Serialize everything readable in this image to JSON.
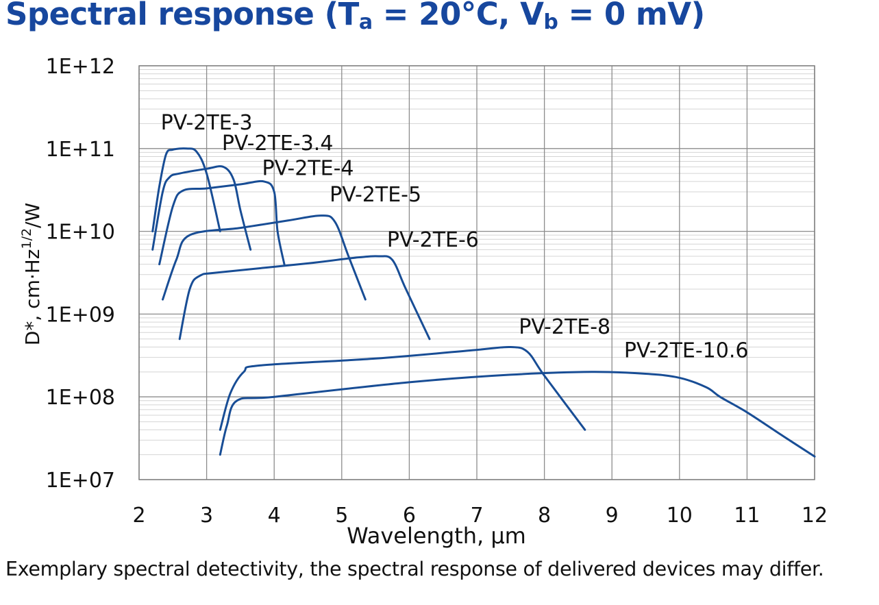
{
  "header": {
    "title_prefix": "Spectral response (T",
    "title_sub_a": "a",
    "title_mid": " = 20°C, V",
    "title_sub_b": "b",
    "title_suffix": " = 0 mV)"
  },
  "footer": {
    "caption": "Exemplary spectral detectivity, the spectral response of delivered devices may differ."
  },
  "chart_data": {
    "type": "line",
    "title": "Spectral response (Ta = 20°C, Vb = 0 mV)",
    "xlabel": "Wavelength, µm",
    "ylabel_parts": {
      "main": "D*, cm·Hz",
      "sup": "1/2",
      "end": "/W"
    },
    "xlim": [
      2,
      12
    ],
    "ylim": [
      10000000,
      1000000000000
    ],
    "yscale": "log",
    "grid": true,
    "x_ticks": [
      2,
      3,
      4,
      5,
      6,
      7,
      8,
      9,
      10,
      11,
      12
    ],
    "y_ticks": [
      {
        "value": 10000000,
        "label": "1E+07"
      },
      {
        "value": 100000000,
        "label": "1E+08"
      },
      {
        "value": 1000000000,
        "label": "1E+09"
      },
      {
        "value": 10000000000,
        "label": "1E+10"
      },
      {
        "value": 100000000000,
        "label": "1E+11"
      },
      {
        "value": 1000000000000,
        "label": "1E+12"
      }
    ],
    "line_color": "#184d95",
    "series": [
      {
        "name": "PV-2TE-3",
        "x": [
          2.2,
          2.3,
          2.4,
          2.5,
          2.7,
          2.85,
          3.0,
          3.2
        ],
        "y": [
          10000000000,
          35000000000,
          85000000000,
          97000000000,
          100000000000,
          92000000000,
          50000000000,
          10000000000
        ]
      },
      {
        "name": "PV-2TE-3.4",
        "x": [
          2.2,
          2.35,
          2.45,
          2.6,
          3.0,
          3.25,
          3.4,
          3.5,
          3.65
        ],
        "y": [
          6000000000,
          30000000000,
          45000000000,
          50000000000,
          57000000000,
          60000000000,
          42000000000,
          18000000000,
          6000000000
        ]
      },
      {
        "name": "PV-2TE-4",
        "x": [
          2.3,
          2.5,
          2.65,
          3.0,
          3.5,
          3.85,
          4.0,
          4.05,
          4.15
        ],
        "y": [
          4000000000,
          20000000000,
          31000000000,
          33000000000,
          37000000000,
          40000000000,
          30000000000,
          10000000000,
          4000000000
        ]
      },
      {
        "name": "PV-2TE-5",
        "x": [
          2.35,
          2.55,
          2.75,
          3.5,
          4.2,
          4.7,
          4.9,
          5.1,
          5.35
        ],
        "y": [
          1500000000,
          4500000000,
          9000000000,
          11000000000,
          13500000000,
          15500000000,
          13000000000,
          5000000000,
          1500000000
        ]
      },
      {
        "name": "PV-2TE-6",
        "x": [
          2.6,
          2.75,
          2.9,
          3.2,
          4.5,
          5.2,
          5.55,
          5.75,
          5.95,
          6.3
        ],
        "y": [
          500000000,
          2000000000,
          2900000000,
          3200000000,
          4100000000,
          4800000000,
          5000000000,
          4500000000,
          2000000000,
          500000000
        ]
      },
      {
        "name": "PV-2TE-8",
        "x": [
          3.2,
          3.35,
          3.55,
          3.8,
          5.5,
          7.0,
          7.5,
          7.75,
          8.0,
          8.6
        ],
        "y": [
          40000000,
          110000000,
          200000000,
          240000000,
          290000000,
          370000000,
          400000000,
          350000000,
          180000000,
          40000000
        ]
      },
      {
        "name": "PV-2TE-10.6",
        "x": [
          3.2,
          3.3,
          3.45,
          4.0,
          6.0,
          7.5,
          8.7,
          9.5,
          10.0,
          10.4,
          10.6,
          11.0,
          11.5,
          12.0
        ],
        "y": [
          20000000,
          45000000,
          90000000,
          100000000,
          150000000,
          185000000,
          200000000,
          190000000,
          170000000,
          130000000,
          100000000,
          65000000,
          35000000,
          19000000
        ]
      }
    ],
    "annotations": [
      {
        "text": "PV-2TE-3",
        "x": 3.0,
        "y": 170000000000,
        "ref": "PV-2TE-3"
      },
      {
        "text": "PV-2TE-3.4",
        "x": 4.05,
        "y": 96000000000,
        "ref": "PV-2TE-3.4"
      },
      {
        "text": "PV-2TE-4",
        "x": 4.5,
        "y": 48000000000,
        "ref": "PV-2TE-4"
      },
      {
        "text": "PV-2TE-5",
        "x": 5.5,
        "y": 23000000000,
        "ref": "PV-2TE-5"
      },
      {
        "text": "PV-2TE-6",
        "x": 6.35,
        "y": 6500000000,
        "ref": "PV-2TE-6"
      },
      {
        "text": "PV-2TE-8",
        "x": 8.3,
        "y": 580000000,
        "ref": "PV-2TE-8"
      },
      {
        "text": "PV-2TE-10.6",
        "x": 10.1,
        "y": 300000000,
        "ref": "PV-2TE-10.6"
      }
    ]
  }
}
